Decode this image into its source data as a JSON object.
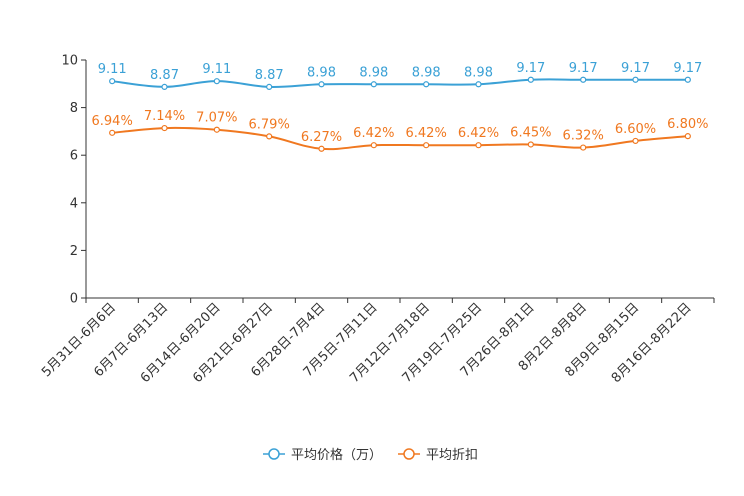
{
  "chart_data": {
    "type": "line",
    "title": "",
    "xlabel": "",
    "ylabel": "",
    "ylim": [
      0,
      10
    ],
    "yticks": [
      0,
      2,
      4,
      6,
      8,
      10
    ],
    "grid": false,
    "legend_position": "bottom-center",
    "categories": [
      "5月31日-6月6日",
      "6月7日-6月13日",
      "6月14日-6月20日",
      "6月21日-6月27日",
      "6月28日-7月4日",
      "7月5日-7月11日",
      "7月12日-7月18日",
      "7月19日-7月25日",
      "7月26日-8月1日",
      "8月2日-8月8日",
      "8月9日-8月15日",
      "8月16日-8月22日"
    ],
    "series": [
      {
        "name": "平均价格（万）",
        "color": "#3ba1d6",
        "values": [
          9.11,
          8.87,
          9.11,
          8.87,
          8.98,
          8.98,
          8.98,
          8.98,
          9.17,
          9.17,
          9.17,
          9.17
        ],
        "labels": [
          "9.11",
          "8.87",
          "9.11",
          "8.87",
          "8.98",
          "8.98",
          "8.98",
          "8.98",
          "9.17",
          "9.17",
          "9.17",
          "9.17"
        ]
      },
      {
        "name": "平均折扣",
        "color": "#f07820",
        "values": [
          6.94,
          7.14,
          7.07,
          6.79,
          6.27,
          6.42,
          6.42,
          6.42,
          6.45,
          6.32,
          6.6,
          6.8
        ],
        "labels": [
          "6.94%",
          "7.14%",
          "7.07%",
          "6.79%",
          "6.27%",
          "6.42%",
          "6.42%",
          "6.42%",
          "6.45%",
          "6.32%",
          "6.60%",
          "6.80%"
        ]
      }
    ]
  }
}
